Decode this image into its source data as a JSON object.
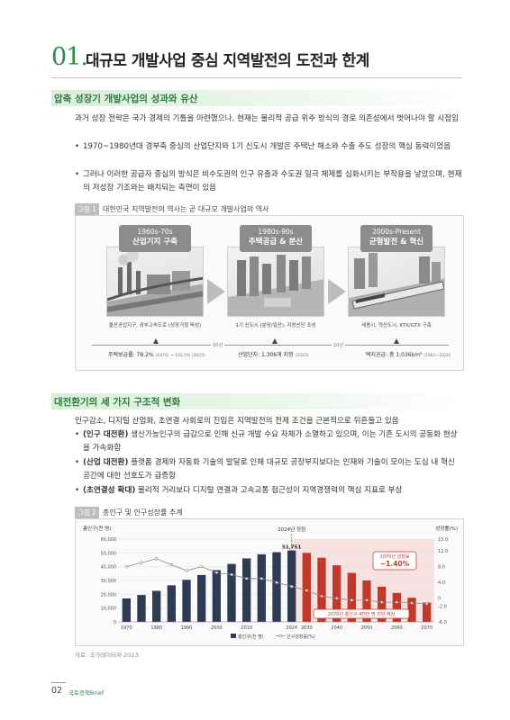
{
  "header": {
    "number": "01.",
    "title": "대규모 개발사업 중심 지역발전의 도전과 한계"
  },
  "section1": {
    "heading": "압축 성장기 개발사업의 성과와 유산",
    "lead": "과거 성장 전략은 국가 경제의 기틀을 마련했으나, 현재는 물리적 공급 위주 방식의 경로 의존성에서 벗어나야 할 시점임",
    "bullets": [
      "1970~1980년대 경부축 중심의 산업단지와 1기 신도시 개발은 주택난 해소와 수출 주도 성장의 핵심 동력이었음",
      "그러나 이러한 공급자 중심의 방식은 비수도권의 인구 유출과 수도권 일극 체제를 심화시키는 부작용을 낳았으며, 현재의 저성장 기조와는 배치되는 측면이 있음"
    ],
    "figure": {
      "tag": "그림 1",
      "caption": "대한민국 지역발전의 역사는 곧 대규모 개발사업의 역사",
      "stages": [
        {
          "era": "1960s-70s",
          "name": "산업기지 구축",
          "desc": "울산공업지구, 경부고속도로 (성장거점 육성)"
        },
        {
          "era": "1980s-90s",
          "name": "주택공급 & 분산",
          "desc": "1기 신도시 (분당/일산), 지방산단 조성"
        },
        {
          "era": "2000s-Present",
          "name": "균형발전 & 혁신",
          "desc": "세종시, 혁신도시, KTX/GTX 구축"
        }
      ],
      "timeline": [
        {
          "label": "주택보급률: 78.2%",
          "detail": "(1970) → 102.5% (2023)"
        },
        {
          "label": "산업단지: 1,306개 지정",
          "detail": "(2023)"
        },
        {
          "label": "택지공급: 총 1,036km²",
          "detail": "(1981~2020)"
        }
      ],
      "durations": [
        "10년",
        "10년"
      ]
    }
  },
  "section2": {
    "heading": "대전환기의 세 가지 구조적 변화",
    "lead": "인구감소, 디지털 산업화, 초연결 사회로의 진입은 지역발전의 전제 조건을 근본적으로 뒤흔들고 있음",
    "bullets": [
      {
        "strong": "(인구 대전환)",
        "text": " 생산가능인구의 급감으로 인해 신규 개발 수요 자체가 소멸하고 있으며, 이는 기존 도시의 공동화 현상을 가속화함"
      },
      {
        "strong": "(산업 대전환)",
        "text": " 플랫폼 경제와 자동화 기술의 발달로 인해 대규모 공장부지보다는 인재와 기술이 모이는 도심 내 혁신 공간에 대한 선호도가 급증함"
      },
      {
        "strong": "(초연결성 확대)",
        "text": " 물리적 거리보다 디지털 연결과 고속교통 접근성이 지역경쟁력의 핵심 지표로 부상"
      }
    ],
    "figure": {
      "tag": "그림 2",
      "caption": "총인구 및 인구성장률 추계",
      "note": "자료: 국가데이터처 2023."
    }
  },
  "chart_data": {
    "type": "bar",
    "categories": [
      "1970",
      "1975",
      "1980",
      "1985",
      "1990",
      "1995",
      "2000",
      "2005",
      "2010",
      "2015",
      "2020",
      "2024",
      "2030",
      "2035",
      "2040",
      "2045",
      "2050",
      "2055",
      "2060",
      "2065",
      "2070"
    ],
    "x_tick_labels": [
      "1970",
      "1980",
      "1990",
      "2000",
      "2010",
      "2024",
      "2030",
      "2040",
      "2050",
      "2060",
      "2070"
    ],
    "series": [
      {
        "name": "총인구(천 명)",
        "type": "bar",
        "axis": "left",
        "values": [
          17000,
          19500,
          22500,
          26500,
          30500,
          34000,
          37500,
          42000,
          46000,
          49000,
          50500,
          51751,
          50000,
          46500,
          41000,
          35500,
          30000,
          25500,
          21000,
          17500,
          14000
        ]
      },
      {
        "name": "인구성장률(%)",
        "type": "line",
        "axis": "right",
        "values": [
          8.0,
          9.0,
          10.0,
          8.5,
          7.0,
          8.0,
          6.5,
          6.0,
          5.0,
          5.0,
          4.0,
          3.0,
          2.0,
          0.5,
          0.0,
          -0.5,
          -0.5,
          -1.0,
          -1.0,
          -1.2,
          -1.4
        ]
      }
    ],
    "left_axis": {
      "label": "총인구(천 명)",
      "ticks": [
        0,
        10000,
        20000,
        30000,
        40000,
        50000,
        60000
      ],
      "tick_labels": [
        "0",
        "10,000",
        "20,000",
        "30,000",
        "40,000",
        "50,000",
        "60,000"
      ]
    },
    "right_axis": {
      "label": "성장률(%)",
      "ticks": [
        -6.0,
        -2.0,
        0,
        4.0,
        8.0,
        12.0,
        15.0
      ],
      "tick_labels": [
        "-6.0",
        "-2.0",
        "0",
        "4.0",
        "8.0",
        "12.0",
        "15.0"
      ]
    },
    "ylim_left": [
      0,
      60000
    ],
    "ylim_right": [
      -6.0,
      15.0
    ],
    "base_year_label": "2024년 정점",
    "peak_label": "51,751",
    "callout_rate": {
      "title": "2070년 성장률",
      "value": "−1.40%"
    },
    "callout_pop": "2070년 총인구 4천만 명 미만 예상",
    "legend": [
      "총인구(천 명)",
      "인구성장률(%)"
    ],
    "colors": {
      "past_bar": "#2f3a55",
      "future_bar": "#c0392b",
      "future_zone": "#f8e1e1",
      "line": "#888888"
    }
  }
}
